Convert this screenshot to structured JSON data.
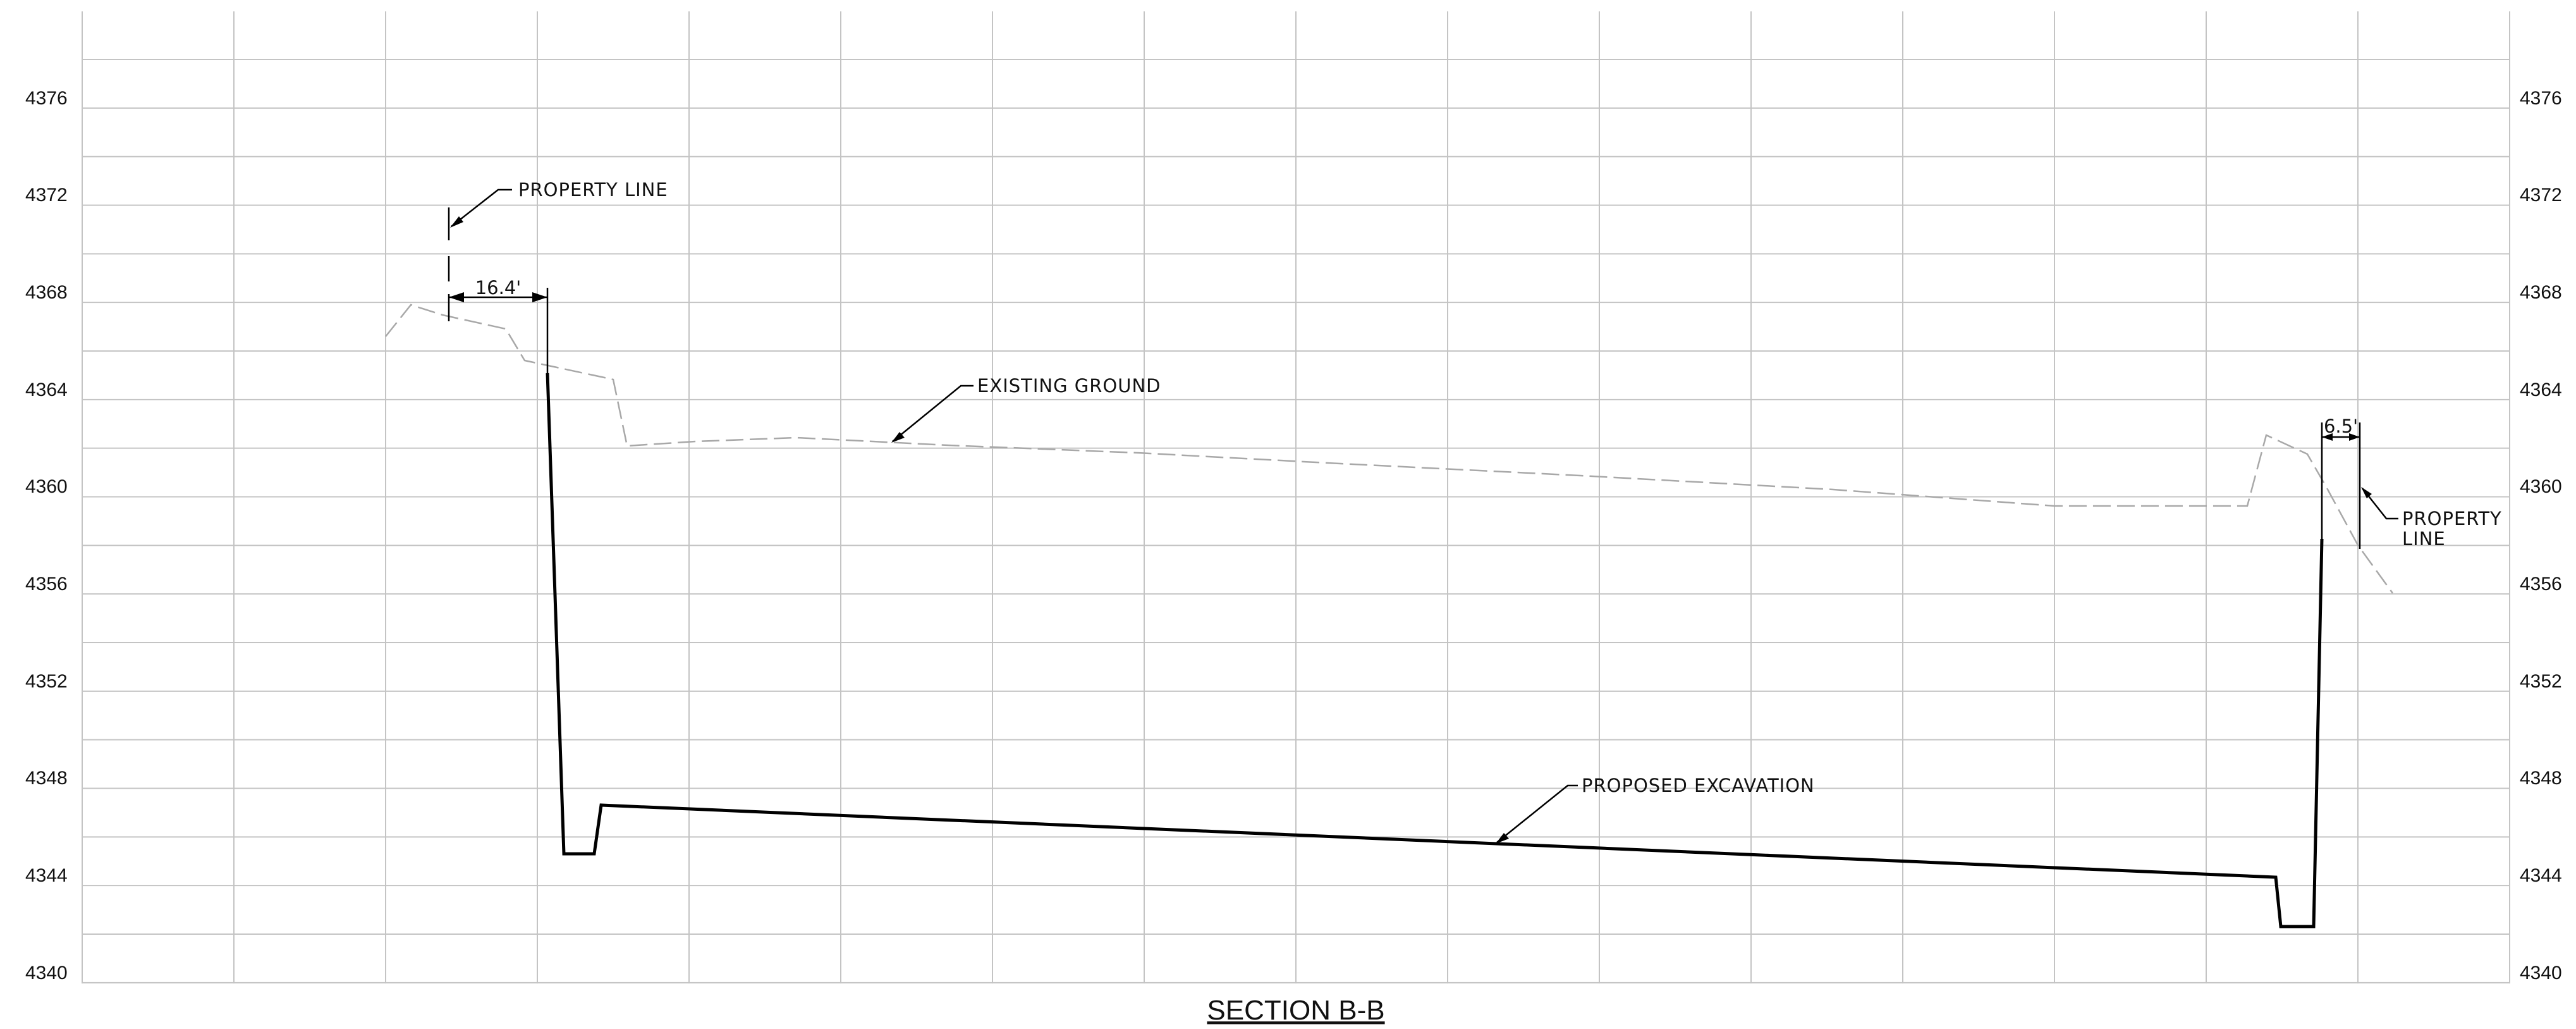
{
  "section": {
    "title": "SECTION B-B"
  },
  "elevations": {
    "left": [
      "4376",
      "4372",
      "4368",
      "4364",
      "4360",
      "4356",
      "4352",
      "4348",
      "4344",
      "4340"
    ],
    "right": [
      "4376",
      "4372",
      "4368",
      "4364",
      "4360",
      "4356",
      "4352",
      "4348",
      "4344",
      "4340"
    ]
  },
  "callouts": {
    "property_line_left": "PROPERTY LINE",
    "existing_ground": "EXISTING GROUND",
    "proposed_excavation": "PROPOSED EXCAVATION",
    "property_line_right_1": "PROPERTY",
    "property_line_right_2": "LINE"
  },
  "dimensions": {
    "left_offset": "16.4'",
    "right_offset": "6.5'"
  },
  "colors": {
    "grid": "#c4c4c4",
    "existing_ground": "#a8a8a8",
    "excavation": "#000000",
    "text": "#111111"
  },
  "line_styles": {
    "existing_ground": "dashed",
    "proposed_excavation": "solid"
  }
}
